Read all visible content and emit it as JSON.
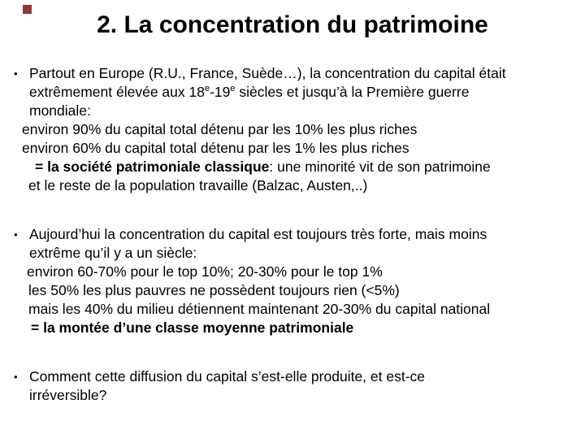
{
  "slide": {
    "title": "2. La concentration du patrimoine",
    "accent_color": "#953735",
    "background_color": "#ffffff",
    "text_color": "#000000",
    "bullet_glyph": "•"
  },
  "bullet1": {
    "line1": "Partout en Europe (R.U., France, Suède…), la concentration du capital était",
    "line2_a": "extrêmement élevée aux 18",
    "line2_sup1": "e",
    "line2_b": "-19",
    "line2_sup2": "e",
    "line2_c": " siècles et jusqu’à la Première guerre",
    "line3": "mondiale:",
    "sub1": "environ 90% du capital total détenu par les 10% les plus riches",
    "sub2": "environ 60% du capital total détenu par les 1% les plus riches",
    "sub3_bold": "= la société patrimoniale classique",
    "sub3_rest": ": une minorité vit de son patrimoine",
    "sub4": "et le reste de la population travaille (Balzac, Austen,..)"
  },
  "bullet2": {
    "line1": "Aujourd’hui la concentration du capital est toujours très forte, mais moins",
    "line2": "extrême qu’il y a un siècle:",
    "sub1": "environ 60-70% pour le top 10%; 20-30% pour le top 1%",
    "sub2": "les 50% les plus pauvres ne possèdent toujours rien (<5%)",
    "sub3": "mais les 40% du milieu détiennent maintenant 20-30% du capital national",
    "sub4_bold": "= la montée d’une classe moyenne patrimoniale"
  },
  "bullet3": {
    "line1": "Comment cette diffusion du capital s’est-elle produite, et est-ce",
    "line2": "irréversible?"
  }
}
